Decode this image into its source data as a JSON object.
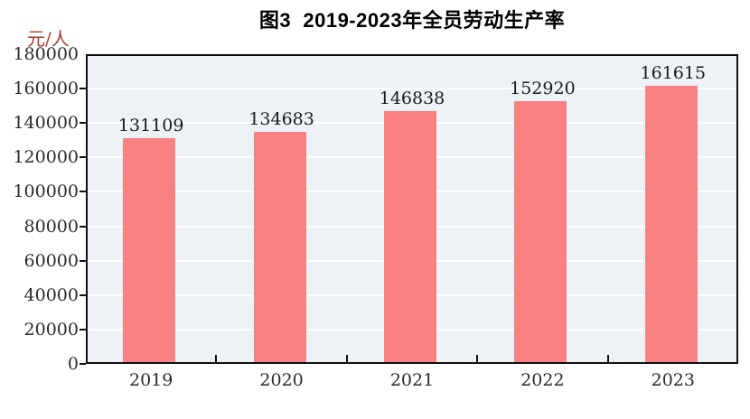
{
  "chart_data": {
    "type": "bar",
    "title": "图3  2019-2023年全员劳动生产率",
    "unit": "元/人",
    "ylabel": "元/人",
    "xlabel": "",
    "categories": [
      "2019",
      "2020",
      "2021",
      "2022",
      "2023"
    ],
    "values": [
      131109,
      134683,
      146838,
      152920,
      161615
    ],
    "value_labels": [
      "131109",
      "134683",
      "146838",
      "152920",
      "161615"
    ],
    "ylim": [
      0,
      180000
    ],
    "ytick_step": 20000,
    "ytick_labels": [
      "0",
      "20000",
      "40000",
      "60000",
      "80000",
      "100000",
      "120000",
      "140000",
      "160000",
      "180000"
    ],
    "grid": "horizontal",
    "legend_position": "none",
    "colors": {
      "bar": "#fa8181",
      "plot_bg": "#edf2f6",
      "grid": "#ffffff",
      "axis": "#111111",
      "tick_label": "#2b2b2b",
      "value_label": "#1a1a1a",
      "title": "#000000",
      "unit": "#a93c32"
    }
  }
}
